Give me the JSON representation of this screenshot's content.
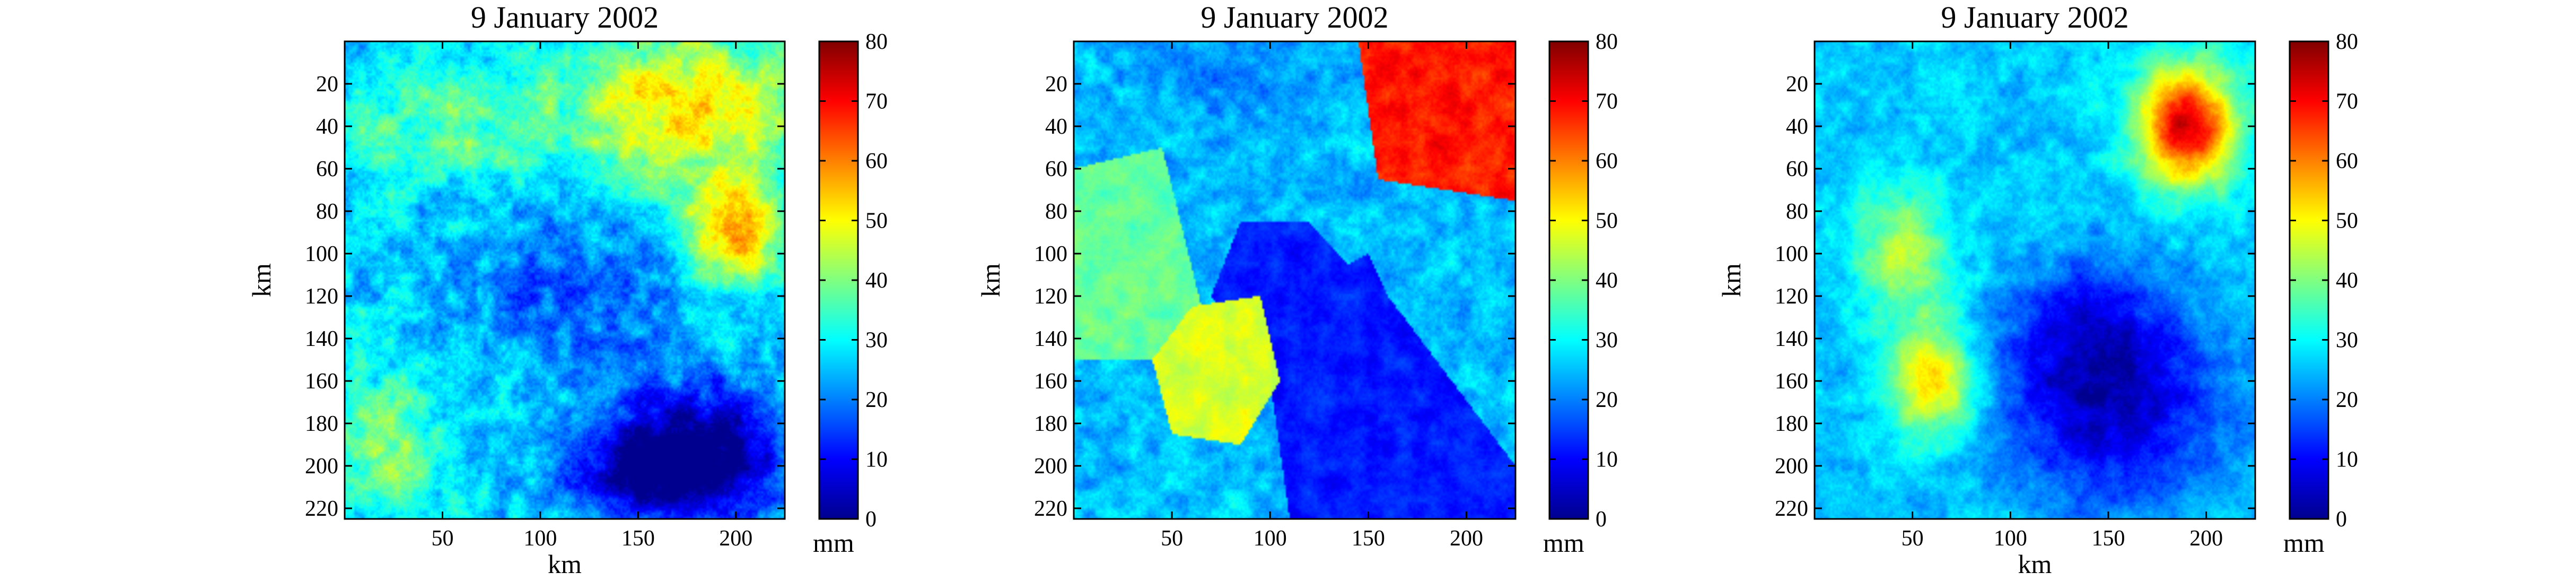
{
  "figure": {
    "colormap": "jet",
    "colormap_stops": [
      "#00008f",
      "#0000ff",
      "#0080ff",
      "#00ffff",
      "#80ff80",
      "#ffff00",
      "#ff8000",
      "#ff0000",
      "#800000"
    ]
  },
  "chart_data": [
    {
      "type": "heatmap",
      "title": "9 January 2002",
      "xlabel": "km",
      "ylabel": "km",
      "xlim": [
        0,
        225
      ],
      "ylim": [
        0,
        225
      ],
      "y_reversed": true,
      "xticks": [
        50,
        100,
        150,
        200
      ],
      "yticks": [
        20,
        40,
        60,
        80,
        100,
        120,
        140,
        160,
        180,
        200,
        220
      ],
      "colorbar": {
        "label": "mm",
        "min": 0,
        "max": 80,
        "ticks": [
          0,
          10,
          20,
          30,
          40,
          50,
          60,
          70,
          80
        ]
      },
      "field": {
        "base": 27,
        "noise": 11,
        "features": [
          {
            "kind": "blob",
            "cx": 175,
            "cy": 30,
            "sx": 60,
            "sy": 35,
            "amp": 26
          },
          {
            "kind": "blob",
            "cx": 200,
            "cy": 90,
            "sx": 25,
            "sy": 25,
            "amp": 30
          },
          {
            "kind": "blob",
            "cx": 20,
            "cy": 190,
            "sx": 25,
            "sy": 30,
            "amp": 14
          },
          {
            "kind": "blob",
            "cx": 50,
            "cy": 40,
            "sx": 50,
            "sy": 25,
            "amp": 10
          },
          {
            "kind": "blob",
            "cx": 120,
            "cy": 120,
            "sx": 60,
            "sy": 35,
            "amp": -10
          },
          {
            "kind": "blob",
            "cx": 180,
            "cy": 190,
            "sx": 45,
            "sy": 30,
            "amp": -25
          },
          {
            "kind": "blob",
            "cx": 160,
            "cy": 205,
            "sx": 50,
            "sy": 20,
            "amp": -20
          }
        ]
      }
    },
    {
      "type": "heatmap",
      "title": "9 January 2002",
      "xlabel": "",
      "ylabel": "km",
      "xlim": [
        0,
        225
      ],
      "ylim": [
        0,
        225
      ],
      "y_reversed": true,
      "xticks": [
        50,
        100,
        150,
        200
      ],
      "yticks": [
        20,
        40,
        60,
        80,
        100,
        120,
        140,
        160,
        180,
        200,
        220
      ],
      "colorbar": {
        "label": "mm",
        "min": 0,
        "max": 80,
        "ticks": [
          0,
          10,
          20,
          30,
          40,
          50,
          60,
          70,
          80
        ]
      },
      "field": {
        "base": 25,
        "noise": 8,
        "features": [
          {
            "kind": "poly",
            "value": 68,
            "noise": 6,
            "pts": [
              [
                145,
                0
              ],
              [
                225,
                0
              ],
              [
                225,
                75
              ],
              [
                155,
                65
              ]
            ]
          },
          {
            "kind": "poly",
            "value": 47,
            "noise": 5,
            "pts": [
              [
                60,
                125
              ],
              [
                95,
                120
              ],
              [
                105,
                160
              ],
              [
                85,
                190
              ],
              [
                50,
                185
              ],
              [
                40,
                150
              ]
            ]
          },
          {
            "kind": "poly",
            "value": 38,
            "noise": 5,
            "pts": [
              [
                0,
                60
              ],
              [
                45,
                50
              ],
              [
                65,
                125
              ],
              [
                40,
                150
              ],
              [
                0,
                150
              ]
            ]
          },
          {
            "kind": "poly",
            "value": 12,
            "noise": 5,
            "pts": [
              [
                85,
                85
              ],
              [
                120,
                85
              ],
              [
                140,
                105
              ],
              [
                150,
                100
              ],
              [
                160,
                120
              ],
              [
                225,
                200
              ],
              [
                225,
                225
              ],
              [
                110,
                225
              ],
              [
                100,
                160
              ],
              [
                70,
                120
              ]
            ]
          },
          {
            "kind": "blob",
            "cx": 80,
            "cy": 20,
            "sx": 40,
            "sy": 20,
            "amp": -5
          }
        ]
      }
    },
    {
      "type": "heatmap",
      "title": "9 January 2002",
      "xlabel": "km",
      "ylabel": "km",
      "xlim": [
        0,
        225
      ],
      "ylim": [
        0,
        225
      ],
      "y_reversed": true,
      "xticks": [
        50,
        100,
        150,
        200
      ],
      "yticks": [
        20,
        40,
        60,
        80,
        100,
        120,
        140,
        160,
        180,
        200,
        220
      ],
      "colorbar": {
        "label": "mm",
        "min": 0,
        "max": 80,
        "ticks": [
          0,
          10,
          20,
          30,
          40,
          50,
          60,
          70,
          80
        ]
      },
      "field": {
        "base": 26,
        "noise": 7,
        "features": [
          {
            "kind": "blob",
            "cx": 190,
            "cy": 40,
            "sx": 25,
            "sy": 28,
            "amp": 48
          },
          {
            "kind": "blob",
            "cx": 60,
            "cy": 160,
            "sx": 22,
            "sy": 25,
            "amp": 28
          },
          {
            "kind": "blob",
            "cx": 45,
            "cy": 100,
            "sx": 25,
            "sy": 30,
            "amp": 18
          },
          {
            "kind": "blob",
            "cx": 150,
            "cy": 170,
            "sx": 55,
            "sy": 45,
            "amp": -22
          },
          {
            "kind": "blob",
            "cx": 140,
            "cy": 130,
            "sx": 40,
            "sy": 30,
            "amp": -10
          }
        ]
      }
    }
  ]
}
